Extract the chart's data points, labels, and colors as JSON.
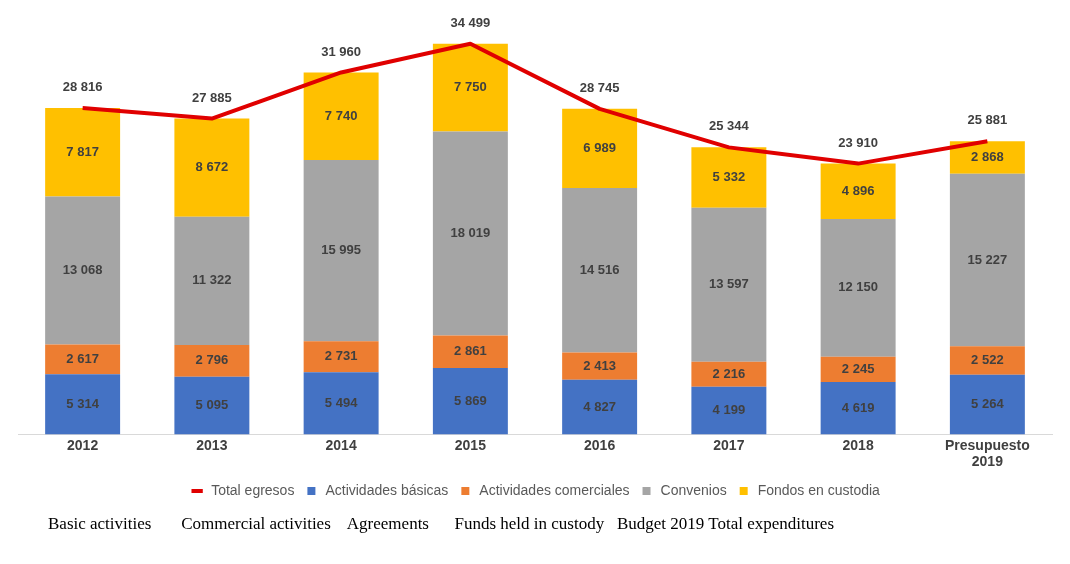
{
  "chart_data": {
    "type": "bar",
    "stacked": true,
    "categories": [
      "2012",
      "2013",
      "2014",
      "2015",
      "2016",
      "2017",
      "2018",
      "Presupuesto 2019"
    ],
    "series": [
      {
        "name": "Actividades básicas",
        "color": "#4472c4",
        "values": [
          5314,
          5095,
          5494,
          5869,
          4827,
          4199,
          4619,
          5264
        ],
        "value_labels": [
          "5 314",
          "5 095",
          "5 494",
          "5 869",
          "4 827",
          "4 199",
          "4 619",
          "5 264"
        ]
      },
      {
        "name": "Actividades comerciales",
        "color": "#ed7d31",
        "values": [
          2617,
          2796,
          2731,
          2861,
          2413,
          2216,
          2245,
          2522
        ],
        "value_labels": [
          "2 617",
          "2 796",
          "2 731",
          "2 861",
          "2 413",
          "2 216",
          "2 245",
          "2 522"
        ]
      },
      {
        "name": "Convenios",
        "color": "#a5a5a5",
        "values": [
          13068,
          11322,
          15995,
          18019,
          14516,
          13597,
          12150,
          15227
        ],
        "value_labels": [
          "13 068",
          "11 322",
          "15 995",
          "18 019",
          "14 516",
          "13 597",
          "12 150",
          "15 227"
        ]
      },
      {
        "name": "Fondos en custodia",
        "color": "#ffc000",
        "values": [
          7817,
          8672,
          7740,
          7750,
          6989,
          5332,
          4896,
          2868
        ],
        "value_labels": [
          "7 817",
          "8 672",
          "7 740",
          "7 750",
          "6 989",
          "5 332",
          "4 896",
          "2 868"
        ]
      },
      {
        "name": "Total egresos",
        "type": "line",
        "color": "#e00000",
        "marker": "none",
        "values": [
          28816,
          27885,
          31960,
          34499,
          28745,
          25344,
          23910,
          25881
        ],
        "value_labels": [
          "28 816",
          "27 885",
          "31 960",
          "34 499",
          "28 745",
          "25 344",
          "23 910",
          "25 881"
        ]
      }
    ],
    "legend": "bottom",
    "grid": false,
    "tick_labels": "x",
    "annotations": [
      "Basic activities       Commercial activities    Agreements      Funds held in custody   Budget 2019 Total expenditures"
    ]
  }
}
